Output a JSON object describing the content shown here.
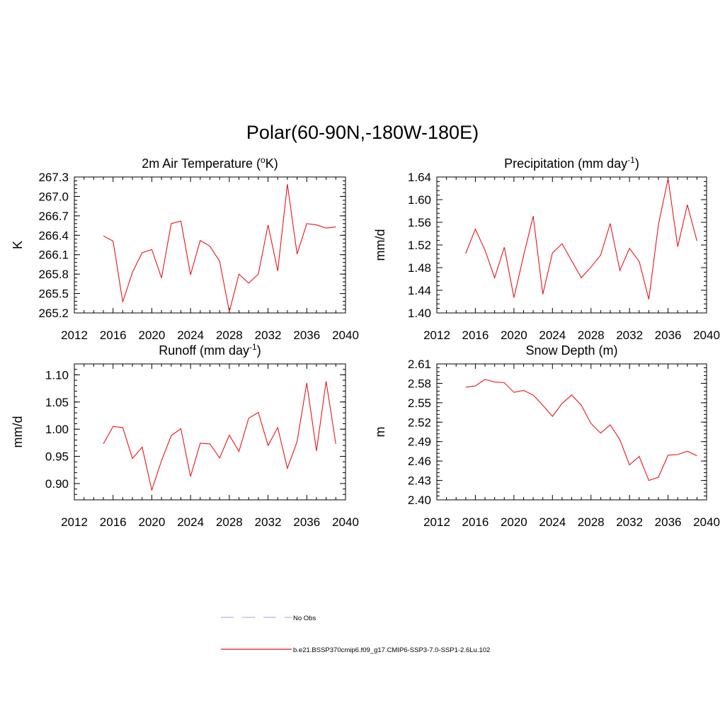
{
  "figure": {
    "title": "Polar(60-90N,-180W-180E)"
  },
  "chart_data": [
    {
      "type": "line",
      "title": "2m Air Temperature (",
      "title_sup": "o",
      "title_tail": "K)",
      "xlabel": "",
      "ylabel": "K",
      "xlim": [
        2012,
        2040
      ],
      "ylim": [
        265.2,
        267.3
      ],
      "xticks": [
        "2012",
        "2016",
        "2020",
        "2024",
        "2028",
        "2032",
        "2036",
        "2040"
      ],
      "yticks": [
        "265.2",
        "265.5",
        "265.8",
        "266.1",
        "266.4",
        "266.7",
        "267.0",
        "267.3"
      ],
      "x": [
        2015,
        2016,
        2017,
        2018,
        2019,
        2020,
        2021,
        2022,
        2023,
        2024,
        2025,
        2026,
        2027,
        2028,
        2029,
        2030,
        2031,
        2032,
        2033,
        2034,
        2035,
        2036,
        2037,
        2038,
        2039
      ],
      "y": [
        266.39,
        266.31,
        265.37,
        265.83,
        266.13,
        266.18,
        265.74,
        266.58,
        266.62,
        265.79,
        266.32,
        266.23,
        266.0,
        265.22,
        265.8,
        265.66,
        265.8,
        266.56,
        265.85,
        267.19,
        266.11,
        266.58,
        266.56,
        266.51,
        266.53
      ],
      "color": "#e8151b"
    },
    {
      "type": "line",
      "title": "Precipitation (mm day",
      "title_sup": "-1",
      "title_tail": ")",
      "xlabel": "",
      "ylabel": "mm/d",
      "xlim": [
        2012,
        2040
      ],
      "ylim": [
        1.4,
        1.64
      ],
      "xticks": [
        "2012",
        "2016",
        "2020",
        "2024",
        "2028",
        "2032",
        "2036",
        "2040"
      ],
      "yticks": [
        "1.40",
        "1.44",
        "1.48",
        "1.52",
        "1.56",
        "1.60",
        "1.64"
      ],
      "x": [
        2015,
        2016,
        2017,
        2018,
        2019,
        2020,
        2021,
        2022,
        2023,
        2024,
        2025,
        2026,
        2027,
        2028,
        2029,
        2030,
        2031,
        2032,
        2033,
        2034,
        2035,
        2036,
        2037,
        2038,
        2039
      ],
      "y": [
        1.505,
        1.548,
        1.511,
        1.462,
        1.516,
        1.427,
        1.501,
        1.571,
        1.433,
        1.506,
        1.522,
        1.492,
        1.462,
        1.481,
        1.502,
        1.558,
        1.475,
        1.514,
        1.491,
        1.424,
        1.556,
        1.637,
        1.517,
        1.591,
        1.527
      ],
      "color": "#e8151b"
    },
    {
      "type": "line",
      "title": "Runoff (mm day",
      "title_sup": "-1",
      "title_tail": ")",
      "xlabel": "",
      "ylabel": "mm/d",
      "xlim": [
        2012,
        2040
      ],
      "ylim": [
        0.87,
        1.12
      ],
      "xticks": [
        "2012",
        "2016",
        "2020",
        "2024",
        "2028",
        "2032",
        "2036",
        "2040"
      ],
      "yticks": [
        "0.90",
        "0.95",
        "1.00",
        "1.05",
        "1.10"
      ],
      "ytick_values": [
        0.9,
        0.95,
        1.0,
        1.05,
        1.1
      ],
      "x": [
        2015,
        2016,
        2017,
        2018,
        2019,
        2020,
        2021,
        2022,
        2023,
        2024,
        2025,
        2026,
        2027,
        2028,
        2029,
        2030,
        2031,
        2032,
        2033,
        2034,
        2035,
        2036,
        2037,
        2038,
        2039
      ],
      "y": [
        0.973,
        1.005,
        1.003,
        0.946,
        0.967,
        0.888,
        0.942,
        0.988,
        1.001,
        0.913,
        0.974,
        0.973,
        0.947,
        0.989,
        0.959,
        1.02,
        1.031,
        0.97,
        1.003,
        0.928,
        0.977,
        1.085,
        0.96,
        1.088,
        0.973
      ],
      "color": "#e8151b"
    },
    {
      "type": "line",
      "title": "Snow Depth (m)",
      "title_sup": "",
      "title_tail": "",
      "xlabel": "",
      "ylabel": "m",
      "xlim": [
        2012,
        2040
      ],
      "ylim": [
        2.4,
        2.61
      ],
      "xticks": [
        "2012",
        "2016",
        "2020",
        "2024",
        "2028",
        "2032",
        "2036",
        "2040"
      ],
      "yticks": [
        "2.40",
        "2.43",
        "2.46",
        "2.49",
        "2.52",
        "2.55",
        "2.58",
        "2.61"
      ],
      "x": [
        2015,
        2016,
        2017,
        2018,
        2019,
        2020,
        2021,
        2022,
        2023,
        2024,
        2025,
        2026,
        2027,
        2028,
        2029,
        2030,
        2031,
        2032,
        2033,
        2034,
        2035,
        2036,
        2037,
        2038,
        2039
      ],
      "y": [
        2.574,
        2.576,
        2.586,
        2.582,
        2.581,
        2.566,
        2.569,
        2.562,
        2.546,
        2.529,
        2.549,
        2.562,
        2.546,
        2.518,
        2.503,
        2.516,
        2.493,
        2.454,
        2.467,
        2.43,
        2.435,
        2.469,
        2.47,
        2.475,
        2.468
      ],
      "color": "#e8151b"
    }
  ],
  "legend": {
    "items": [
      {
        "label": "No Obs",
        "color": "#b4b4e6",
        "dash": true
      },
      {
        "label": "b.e21.BSSP370cmip6.f09_g17.CMIP6-SSP3-7.0-SSP1-2.6Lu.102",
        "color": "#e8151b",
        "dash": false
      }
    ]
  }
}
